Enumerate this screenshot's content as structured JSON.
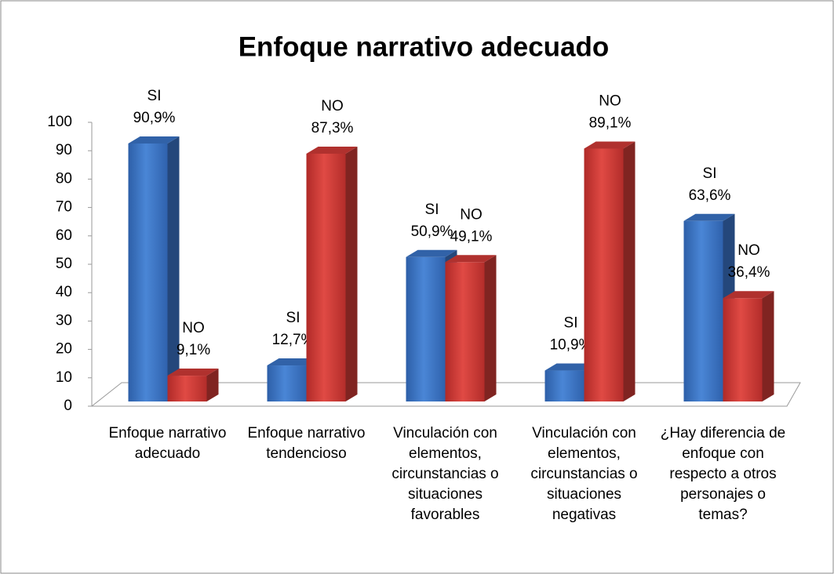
{
  "chart_data": {
    "type": "bar3d",
    "title": "Enfoque narrativo adecuado",
    "categories": [
      "Enfoque narrativo adecuado",
      "Enfoque narrativo tendencioso",
      "Vinculación con elementos, circunstancias o situaciones favorables",
      "Vinculación con elementos, circunstancias o situaciones negativas",
      "¿Hay diferencia de enfoque con respecto a otros personajes o temas?"
    ],
    "series": [
      {
        "name": "SI",
        "color": "#3a73c6",
        "values": [
          90.9,
          12.7,
          50.9,
          10.9,
          63.6
        ],
        "value_labels": [
          "90,9%",
          "12,7%",
          "50,9%",
          "10,9%",
          "63,6%"
        ]
      },
      {
        "name": "NO",
        "color": "#cf3a36",
        "values": [
          9.1,
          87.3,
          49.1,
          89.1,
          36.4
        ],
        "value_labels": [
          "9,1%",
          "87,3%",
          "49,1%",
          "89,1%",
          "36,4%"
        ]
      }
    ],
    "ylim": [
      0,
      100
    ],
    "yticks": [
      0,
      10,
      20,
      30,
      40,
      50,
      60,
      70,
      80,
      90,
      100
    ]
  }
}
